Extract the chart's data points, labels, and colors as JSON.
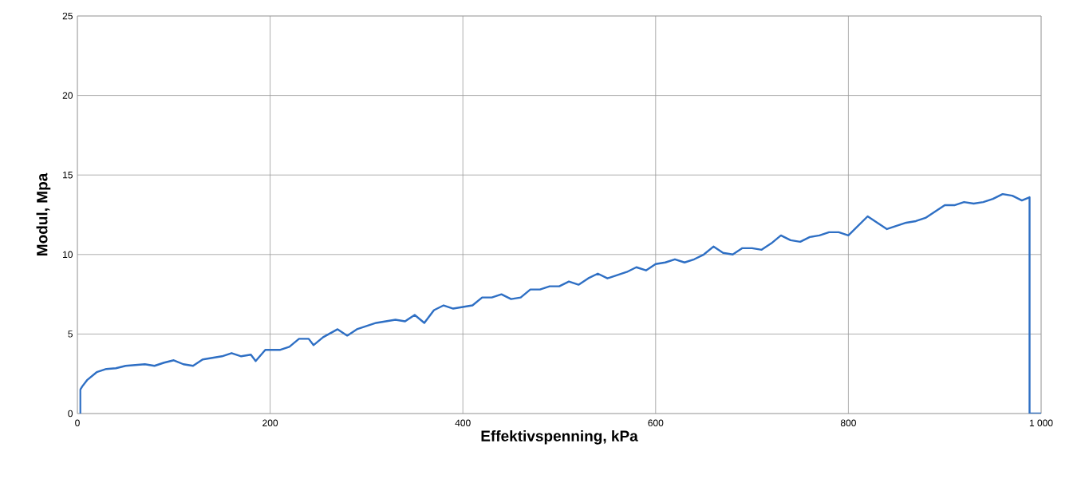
{
  "chart_data": {
    "type": "line",
    "xlabel": "Effektivspenning, kPa",
    "ylabel": "Modul, Mpa",
    "xlim": [
      0,
      1000
    ],
    "ylim": [
      0,
      25
    ],
    "xticks": [
      0,
      200,
      400,
      600,
      800,
      {
        "value": 1000,
        "label": "1 000"
      }
    ],
    "yticks": [
      0,
      5,
      10,
      15,
      20,
      25
    ],
    "grid": true,
    "marker": "none",
    "line_style": "solid",
    "series": [
      {
        "color": "#2e6fc4",
        "x": [
          3,
          3,
          5,
          10,
          20,
          30,
          40,
          50,
          60,
          70,
          80,
          90,
          100,
          110,
          120,
          130,
          140,
          150,
          160,
          170,
          180,
          185,
          195,
          210,
          220,
          230,
          240,
          245,
          255,
          270,
          280,
          290,
          300,
          310,
          320,
          330,
          340,
          350,
          360,
          370,
          380,
          390,
          400,
          410,
          420,
          430,
          440,
          450,
          460,
          470,
          480,
          490,
          500,
          510,
          520,
          530,
          540,
          550,
          560,
          570,
          580,
          590,
          600,
          610,
          620,
          630,
          640,
          650,
          660,
          670,
          680,
          690,
          700,
          710,
          720,
          730,
          740,
          750,
          760,
          770,
          780,
          790,
          800,
          810,
          820,
          830,
          840,
          850,
          860,
          870,
          880,
          890,
          900,
          910,
          920,
          930,
          940,
          950,
          960,
          970,
          980,
          988,
          988,
          1000
        ],
        "values": [
          0,
          1.5,
          1.7,
          2.1,
          2.6,
          2.8,
          2.85,
          3.0,
          3.05,
          3.1,
          3.0,
          3.2,
          3.35,
          3.1,
          3.0,
          3.4,
          3.5,
          3.6,
          3.8,
          3.6,
          3.7,
          3.3,
          4.0,
          4.0,
          4.2,
          4.7,
          4.7,
          4.3,
          4.8,
          5.3,
          4.9,
          5.3,
          5.5,
          5.7,
          5.8,
          5.9,
          5.8,
          6.2,
          5.7,
          6.5,
          6.8,
          6.6,
          6.7,
          6.8,
          7.3,
          7.3,
          7.5,
          7.2,
          7.3,
          7.8,
          7.8,
          8.0,
          8.0,
          8.3,
          8.1,
          8.5,
          8.8,
          8.5,
          8.7,
          8.9,
          9.2,
          9.0,
          9.4,
          9.5,
          9.7,
          9.5,
          9.7,
          10.0,
          10.5,
          10.1,
          10.0,
          10.4,
          10.4,
          10.3,
          10.7,
          11.2,
          10.9,
          10.8,
          11.1,
          11.2,
          11.4,
          11.4,
          11.2,
          11.8,
          12.4,
          12.0,
          11.6,
          11.8,
          12.0,
          12.1,
          12.3,
          12.7,
          13.1,
          13.1,
          13.3,
          13.2,
          13.3,
          13.5,
          13.8,
          13.7,
          13.4,
          13.6,
          0,
          0
        ]
      }
    ]
  }
}
